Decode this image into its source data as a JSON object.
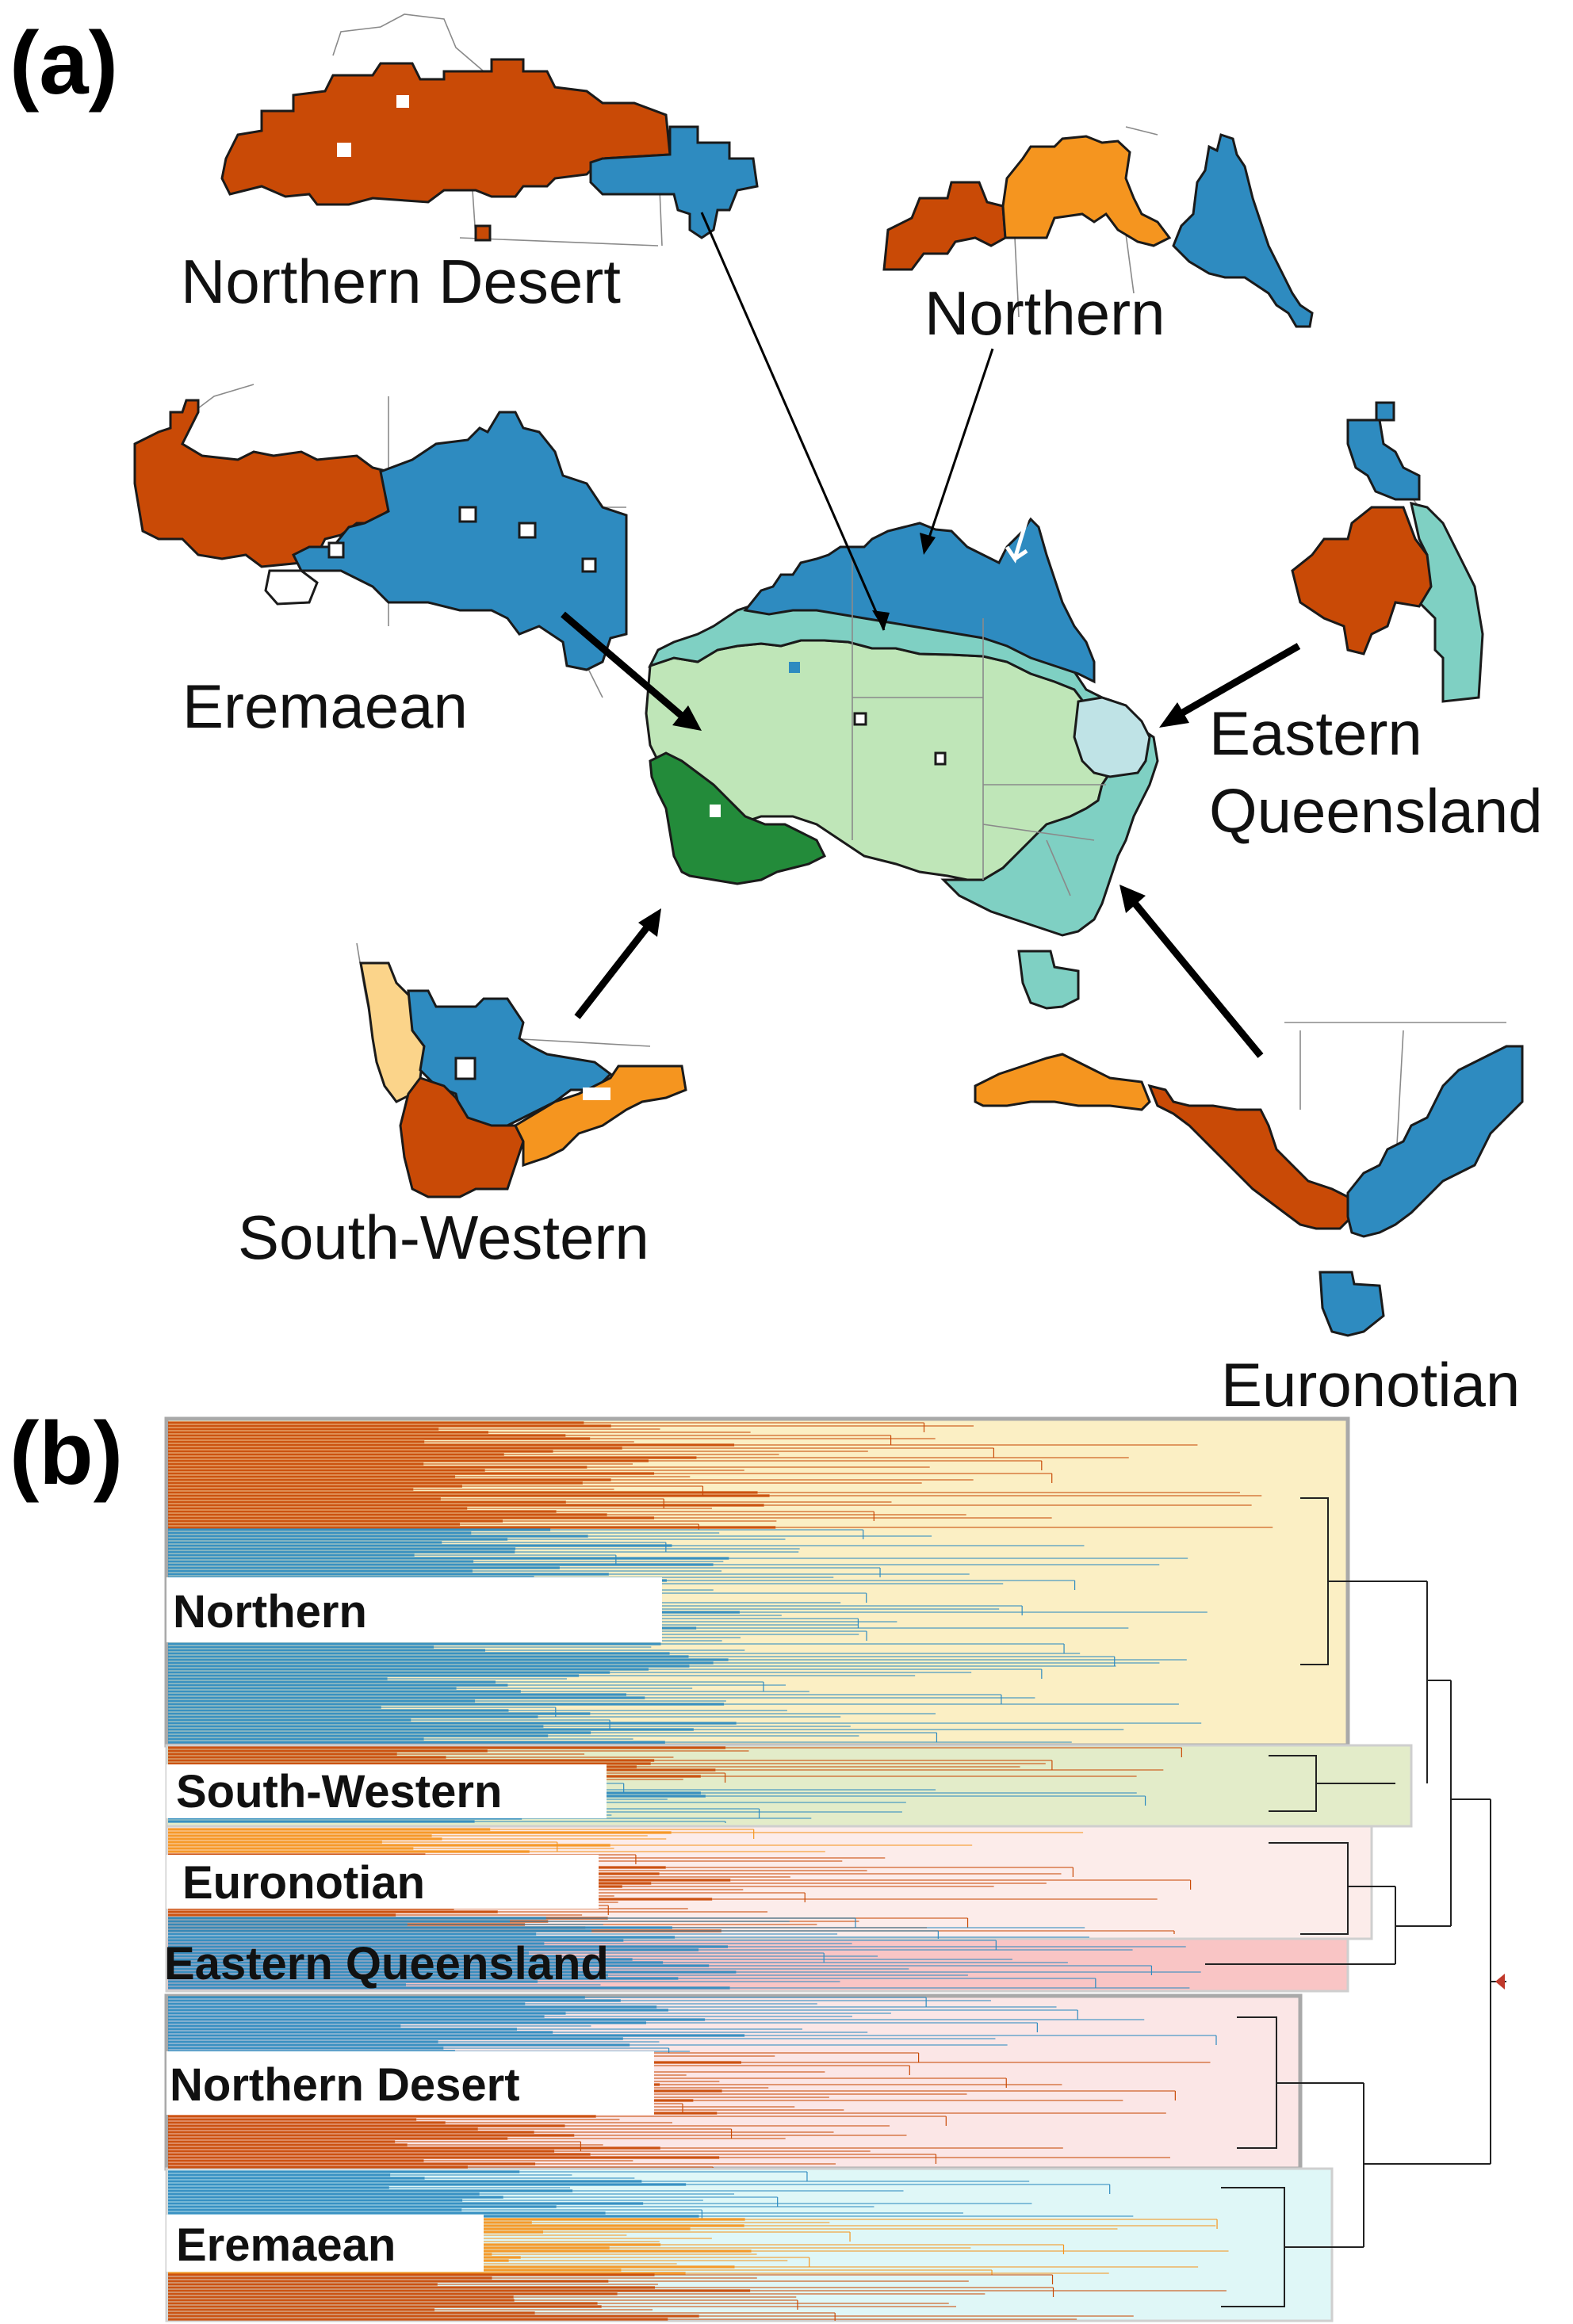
{
  "panels": {
    "a": "(a)",
    "b": "(b)"
  },
  "map_labels": {
    "northern_desert": "Northern Desert",
    "northern": "Northern",
    "eremaean": "Eremaean",
    "eastern_queensland_1": "Eastern",
    "eastern_queensland_2": "Queensland",
    "south_western": "South-Western",
    "euronotian": "Euronotian"
  },
  "tree_labels": {
    "northern": "Northern",
    "south_western": "South-Western",
    "euronotian": "Euronotian",
    "eastern_queensland": "Eastern Queensland",
    "northern_desert": "Northern Desert",
    "eremaean": "Eremaean"
  },
  "colors": {
    "dark_orange": "#c94a06",
    "orange": "#f5951f",
    "light_orange": "#fbd48a",
    "blue": "#2e8bc0",
    "teal": "#7fd0c3",
    "light_green": "#bfe6b8",
    "dark_green": "#238b3a",
    "pale_cyan": "#bfe3e6",
    "box_northern": "#fbefc4",
    "box_south_western": "#e3ecc9",
    "box_euronotian": "#fcecea",
    "box_eastern_queensland": "#f9c5c5",
    "box_northern_desert": "#fbe6e6",
    "box_eremaean": "#dff7f7"
  }
}
